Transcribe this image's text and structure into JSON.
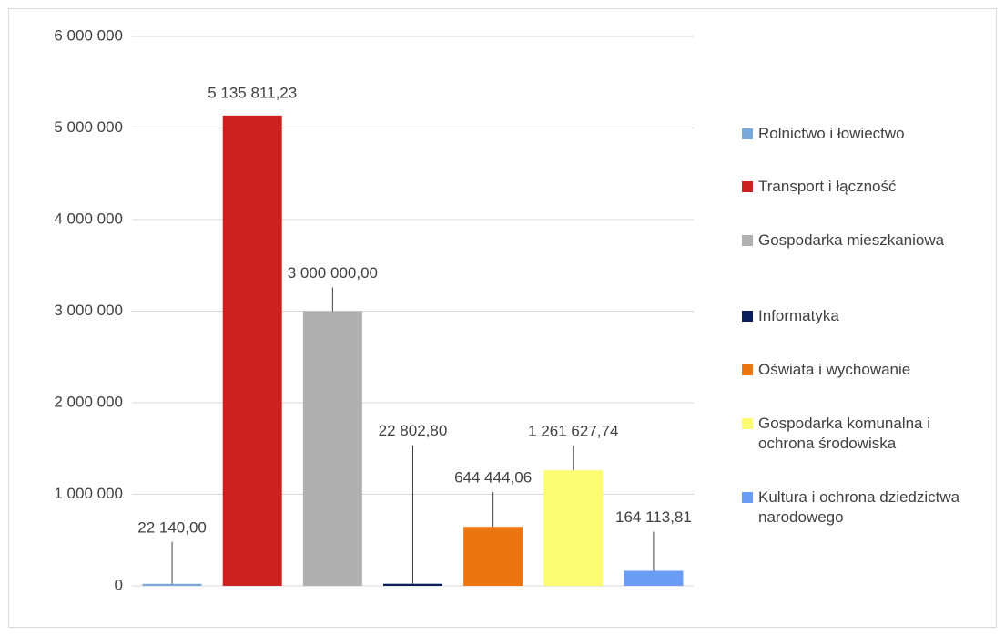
{
  "chart_data": {
    "type": "bar",
    "categories": [
      null
    ],
    "series": [
      {
        "name": "Rolnictwo i łowiectwo",
        "color": "#7aa6d8",
        "values": [
          22140
        ],
        "value_labels": [
          "22 140,00"
        ]
      },
      {
        "name": "Transport i łączność",
        "color": "#cc211e",
        "values": [
          5135811.23
        ],
        "value_labels": [
          "5 135 811,23"
        ]
      },
      {
        "name": "Gospodarka mieszkaniowa",
        "color": "#b0b0b0",
        "values": [
          3000000
        ],
        "value_labels": [
          "3 000 000,00"
        ]
      },
      {
        "name": "Informatyka",
        "color": "#0b1f5c",
        "values": [
          22802.8
        ],
        "value_labels": [
          "22 802,80"
        ]
      },
      {
        "name": "Oświata i wychowanie",
        "color": "#ec7510",
        "values": [
          644444.06
        ],
        "value_labels": [
          "644 444,06"
        ]
      },
      {
        "name": "Gospodarka komunalna i ochrona środowiska",
        "color": "#fdfb72",
        "values": [
          1261627.74
        ],
        "value_labels": [
          "1 261 627,74"
        ]
      },
      {
        "name": "Kultura i ochrona dziedzictwa narodowego",
        "color": "#6b9cf5",
        "values": [
          164113.81
        ],
        "value_labels": [
          "164 113,81"
        ]
      }
    ],
    "ylim": [
      0,
      6000000
    ],
    "yticks": [
      0,
      {
        "value": 1000000,
        "label": "1 000 000"
      },
      {
        "value": 2000000,
        "label": "2 000 000"
      },
      {
        "value": 3000000,
        "label": "3 000 000"
      },
      {
        "value": 4000000,
        "label": "4 000 000"
      },
      {
        "value": 5000000,
        "label": "5 000 000"
      },
      {
        "value": 6000000,
        "label": "6 000 000"
      }
    ],
    "grid": true,
    "legend": "right"
  }
}
